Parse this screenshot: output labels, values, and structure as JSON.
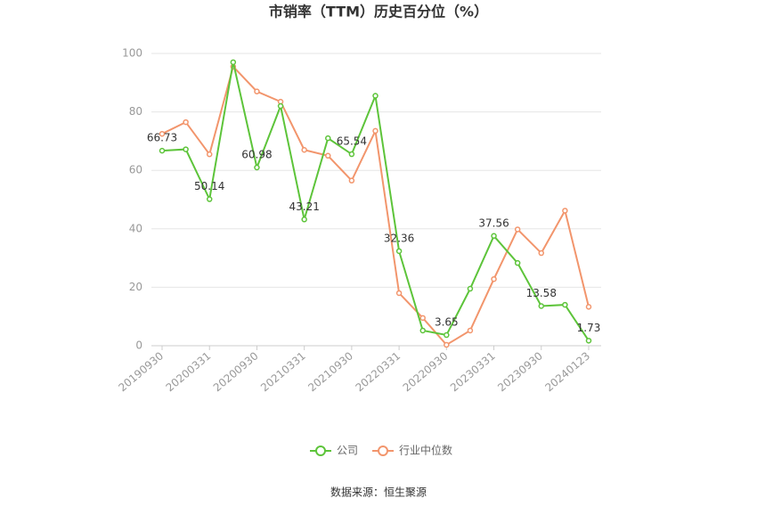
{
  "chart_data": {
    "type": "line",
    "title": "市销率（TTM）历史百分位（%）",
    "categories": [
      "20190930",
      null,
      "20200331",
      null,
      "20200930",
      null,
      "20210331",
      null,
      "20210930",
      null,
      "20220331",
      null,
      "20220930",
      null,
      "20230331",
      null,
      "20230930",
      null,
      "20240123"
    ],
    "series": [
      {
        "name": "公司",
        "color": "#5dc43a",
        "values": [
          66.73,
          67.2,
          50.14,
          97,
          60.98,
          82,
          43.21,
          71,
          65.54,
          85.5,
          32.36,
          5.2,
          3.65,
          19.5,
          37.56,
          28.3,
          13.58,
          14,
          1.73
        ]
      },
      {
        "name": "行业中位数",
        "color": "#f2956c",
        "values": [
          72.5,
          76.5,
          65.5,
          95.5,
          87,
          83.5,
          67,
          65,
          56.5,
          73.5,
          18,
          9.5,
          0.3,
          5.2,
          22.8,
          39.8,
          31.7,
          46.2,
          13.3
        ]
      }
    ],
    "ylim": [
      0,
      100
    ],
    "yticks": [
      0,
      20,
      40,
      60,
      80,
      100
    ],
    "grid": true,
    "legend": "bottom",
    "source": "数据来源：恒生聚源"
  }
}
